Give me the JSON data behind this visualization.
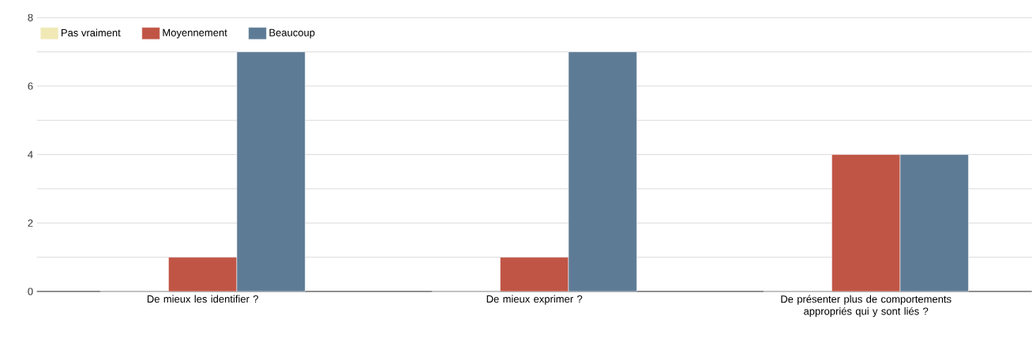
{
  "chart_data": {
    "type": "bar",
    "categories": [
      "De mieux les identifier ?",
      "De mieux exprimer ?",
      "De présenter plus de comportements appropriés qui y sont liés ?"
    ],
    "series": [
      {
        "name": "Pas vraiment",
        "color": "#f0e9b5",
        "values": [
          0,
          0,
          0
        ]
      },
      {
        "name": "Moyennement",
        "color": "#c05545",
        "values": [
          1,
          1,
          4
        ]
      },
      {
        "name": "Beaucoup",
        "color": "#5e7b96",
        "values": [
          7,
          7,
          4
        ]
      }
    ],
    "ylim": [
      0,
      8
    ],
    "yticks": [
      0,
      {
        "value": 1,
        "label": null
      },
      2,
      {
        "value": 3,
        "label": null
      },
      4,
      {
        "value": 5,
        "label": null
      },
      6,
      {
        "value": 7,
        "label": null
      },
      8
    ],
    "grid": "y",
    "legend": "top left"
  }
}
